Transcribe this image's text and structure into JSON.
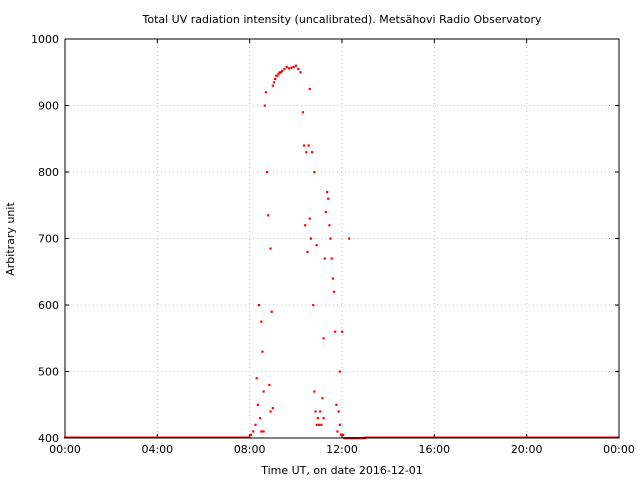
{
  "chart_data": {
    "type": "scatter",
    "title": "Total UV radiation intensity (uncalibrated). Metsähovi Radio Observatory",
    "xlabel": "Time UT, on date 2016-12-01",
    "ylabel": "Arbitrary unit",
    "xlim_hours": [
      0,
      24
    ],
    "ylim": [
      400,
      1000
    ],
    "x_ticks": [
      {
        "hours": 0,
        "label": "00:00"
      },
      {
        "hours": 4,
        "label": "04:00"
      },
      {
        "hours": 8,
        "label": "08:00"
      },
      {
        "hours": 12,
        "label": "12:00"
      },
      {
        "hours": 16,
        "label": "16:00"
      },
      {
        "hours": 20,
        "label": "20:00"
      },
      {
        "hours": 24,
        "label": "00:00"
      }
    ],
    "y_ticks": [
      400,
      500,
      600,
      700,
      800,
      900,
      1000
    ],
    "grid": true,
    "marker_color": "#ff0000",
    "series": [
      {
        "x_hours": [
          8.05,
          8.15,
          8.25,
          8.3,
          8.35,
          8.4,
          8.45,
          8.5,
          8.55,
          8.6,
          8.65,
          8.7,
          8.75,
          8.8,
          8.85,
          8.9,
          8.95,
          9.0,
          9.05,
          9.1,
          9.15,
          9.2,
          9.25,
          9.3,
          9.35,
          9.4,
          9.5,
          9.6,
          9.7,
          9.8,
          9.9,
          10.0,
          10.1,
          10.2,
          10.3,
          10.35,
          10.4,
          10.45,
          10.5,
          10.55,
          10.6,
          10.65,
          10.7,
          10.75,
          10.8,
          10.85,
          10.9,
          10.95,
          11.0,
          11.05,
          11.1,
          11.15,
          11.2,
          11.25,
          11.3,
          11.35,
          11.4,
          11.45,
          11.5,
          11.55,
          11.6,
          11.65,
          11.7,
          11.75,
          11.8,
          11.85,
          11.9,
          11.95,
          12.0,
          12.05,
          12.1,
          12.15,
          12.2,
          12.25,
          12.3,
          12.35,
          12.4,
          12.45,
          12.5,
          12.55,
          12.6,
          12.65,
          12.7,
          12.75,
          12.8,
          12.85,
          12.9,
          12.95,
          13.0,
          8.5,
          8.6,
          8.9,
          9.0,
          10.6,
          10.8,
          10.9,
          11.2,
          11.9,
          12.0,
          12.3
        ],
        "y": [
          405,
          410,
          420,
          490,
          450,
          600,
          430,
          410,
          530,
          410,
          900,
          920,
          800,
          735,
          480,
          440,
          590,
          930,
          935,
          940,
          945,
          945,
          948,
          950,
          950,
          952,
          955,
          958,
          956,
          957,
          958,
          960,
          955,
          950,
          890,
          840,
          720,
          830,
          680,
          840,
          730,
          700,
          830,
          600,
          470,
          440,
          420,
          430,
          420,
          440,
          420,
          460,
          550,
          670,
          740,
          770,
          760,
          720,
          700,
          670,
          640,
          620,
          560,
          450,
          410,
          440,
          420,
          405,
          405,
          405,
          400,
          400,
          400,
          400,
          400,
          400,
          400,
          400,
          400,
          400,
          400,
          400,
          400,
          400,
          400,
          400,
          400,
          400,
          400,
          575,
          470,
          685,
          445,
          925,
          800,
          690,
          430,
          500,
          560,
          700
        ]
      }
    ]
  }
}
